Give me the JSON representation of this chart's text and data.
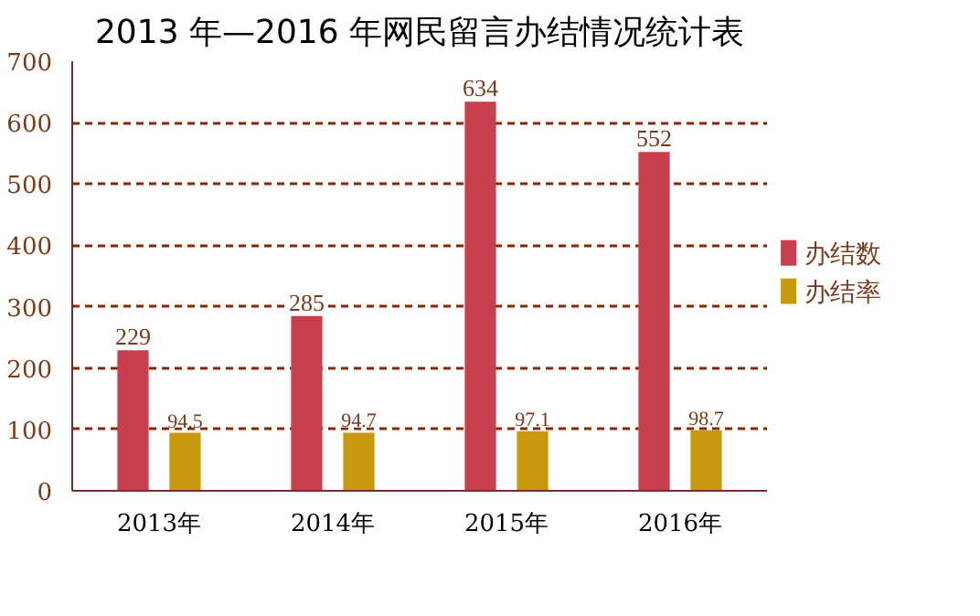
{
  "chart_data": {
    "type": "bar",
    "title": "2013 年—2016 年网民留言办结情况统计表",
    "categories": [
      "2013年",
      "2014年",
      "2015年",
      "2016年"
    ],
    "series": [
      {
        "name": "办结数",
        "color": "#c8404f",
        "values": [
          229,
          285,
          634,
          552
        ]
      },
      {
        "name": "办结率",
        "color": "#c8980f",
        "values": [
          94.5,
          94.7,
          97.1,
          98.7
        ]
      }
    ],
    "ylim": [
      0,
      700
    ],
    "yticks": [
      0,
      100,
      200,
      300,
      400,
      500,
      600,
      700
    ],
    "grid": "y",
    "legend": "right",
    "data_labels": true
  }
}
